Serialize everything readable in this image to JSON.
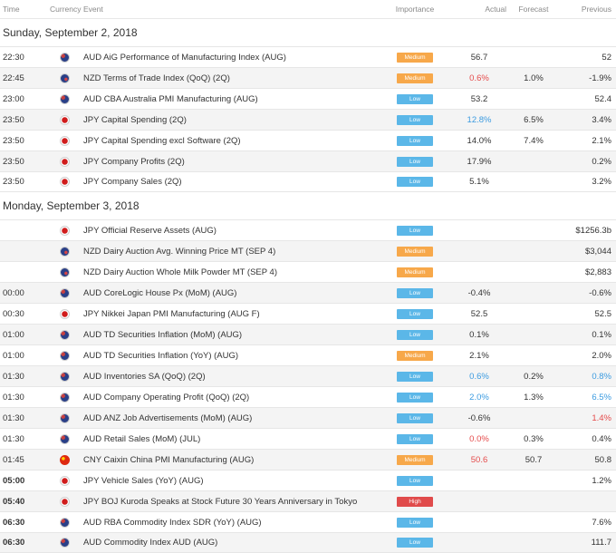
{
  "header": {
    "time": "Time",
    "currency": "Currency",
    "event": "Event",
    "importance": "Importance",
    "actual": "Actual",
    "forecast": "Forecast",
    "previous": "Previous"
  },
  "colors": {
    "low": "#5bb7e8",
    "medium": "#f7a84a",
    "high": "#e04b4b",
    "positive": "#3b9be0",
    "negative": "#e54b4b"
  },
  "days": [
    {
      "title": "Sunday, September 2, 2018",
      "events": [
        {
          "time": "22:30",
          "flag": "aud",
          "event": "AUD AiG Performance of Manufacturing Index (AUG)",
          "importance": "Medium",
          "imp": "medium",
          "actual": "56.7",
          "actual_tone": "",
          "forecast": "",
          "previous": "52",
          "previous_tone": ""
        },
        {
          "time": "22:45",
          "flag": "nzd",
          "event": "NZD Terms of Trade Index (QoQ) (2Q)",
          "importance": "Medium",
          "imp": "medium",
          "actual": "0.6%",
          "actual_tone": "neg",
          "forecast": "1.0%",
          "previous": "-1.9%",
          "previous_tone": ""
        },
        {
          "time": "23:00",
          "flag": "aud",
          "event": "AUD CBA Australia PMI Manufacturing (AUG)",
          "importance": "Low",
          "imp": "low",
          "actual": "53.2",
          "actual_tone": "",
          "forecast": "",
          "previous": "52.4",
          "previous_tone": ""
        },
        {
          "time": "23:50",
          "flag": "jpy",
          "event": "JPY Capital Spending (2Q)",
          "importance": "Low",
          "imp": "low",
          "actual": "12.8%",
          "actual_tone": "pos",
          "forecast": "6.5%",
          "previous": "3.4%",
          "previous_tone": ""
        },
        {
          "time": "23:50",
          "flag": "jpy",
          "event": "JPY Capital Spending excl Software (2Q)",
          "importance": "Low",
          "imp": "low",
          "actual": "14.0%",
          "actual_tone": "",
          "forecast": "7.4%",
          "previous": "2.1%",
          "previous_tone": ""
        },
        {
          "time": "23:50",
          "flag": "jpy",
          "event": "JPY Company Profits (2Q)",
          "importance": "Low",
          "imp": "low",
          "actual": "17.9%",
          "actual_tone": "",
          "forecast": "",
          "previous": "0.2%",
          "previous_tone": ""
        },
        {
          "time": "23:50",
          "flag": "jpy",
          "event": "JPY Company Sales (2Q)",
          "importance": "Low",
          "imp": "low",
          "actual": "5.1%",
          "actual_tone": "",
          "forecast": "",
          "previous": "3.2%",
          "previous_tone": ""
        }
      ]
    },
    {
      "title": "Monday, September 3, 2018",
      "events": [
        {
          "time": "",
          "flag": "jpy",
          "event": "JPY Official Reserve Assets (AUG)",
          "importance": "Low",
          "imp": "low",
          "actual": "",
          "actual_tone": "",
          "forecast": "",
          "previous": "$1256.3b",
          "previous_tone": ""
        },
        {
          "time": "",
          "flag": "nzd",
          "event": "NZD Dairy Auction Avg. Winning Price MT (SEP 4)",
          "importance": "Medium",
          "imp": "medium",
          "actual": "",
          "actual_tone": "",
          "forecast": "",
          "previous": "$3,044",
          "previous_tone": ""
        },
        {
          "time": "",
          "flag": "nzd",
          "event": "NZD Dairy Auction Whole Milk Powder MT (SEP 4)",
          "importance": "Medium",
          "imp": "medium",
          "actual": "",
          "actual_tone": "",
          "forecast": "",
          "previous": "$2,883",
          "previous_tone": ""
        },
        {
          "time": "00:00",
          "flag": "aud",
          "event": "AUD CoreLogic House Px (MoM) (AUG)",
          "importance": "Low",
          "imp": "low",
          "actual": "-0.4%",
          "actual_tone": "",
          "forecast": "",
          "previous": "-0.6%",
          "previous_tone": ""
        },
        {
          "time": "00:30",
          "flag": "jpy",
          "event": "JPY Nikkei Japan PMI Manufacturing (AUG F)",
          "importance": "Low",
          "imp": "low",
          "actual": "52.5",
          "actual_tone": "",
          "forecast": "",
          "previous": "52.5",
          "previous_tone": ""
        },
        {
          "time": "01:00",
          "flag": "aud",
          "event": "AUD TD Securities Inflation (MoM) (AUG)",
          "importance": "Low",
          "imp": "low",
          "actual": "0.1%",
          "actual_tone": "",
          "forecast": "",
          "previous": "0.1%",
          "previous_tone": ""
        },
        {
          "time": "01:00",
          "flag": "aud",
          "event": "AUD TD Securities Inflation (YoY) (AUG)",
          "importance": "Medium",
          "imp": "medium",
          "actual": "2.1%",
          "actual_tone": "",
          "forecast": "",
          "previous": "2.0%",
          "previous_tone": ""
        },
        {
          "time": "01:30",
          "flag": "aud",
          "event": "AUD Inventories SA (QoQ) (2Q)",
          "importance": "Low",
          "imp": "low",
          "actual": "0.6%",
          "actual_tone": "pos",
          "forecast": "0.2%",
          "previous": "0.8%",
          "previous_tone": "pos"
        },
        {
          "time": "01:30",
          "flag": "aud",
          "event": "AUD Company Operating Profit (QoQ) (2Q)",
          "importance": "Low",
          "imp": "low",
          "actual": "2.0%",
          "actual_tone": "pos",
          "forecast": "1.3%",
          "previous": "6.5%",
          "previous_tone": "pos"
        },
        {
          "time": "01:30",
          "flag": "aud",
          "event": "AUD ANZ Job Advertisements (MoM) (AUG)",
          "importance": "Low",
          "imp": "low",
          "actual": "-0.6%",
          "actual_tone": "",
          "forecast": "",
          "previous": "1.4%",
          "previous_tone": "neg"
        },
        {
          "time": "01:30",
          "flag": "aud",
          "event": "AUD Retail Sales (MoM) (JUL)",
          "importance": "Low",
          "imp": "low",
          "actual": "0.0%",
          "actual_tone": "neg",
          "forecast": "0.3%",
          "previous": "0.4%",
          "previous_tone": ""
        },
        {
          "time": "01:45",
          "flag": "cny",
          "event": "CNY Caixin China PMI Manufacturing (AUG)",
          "importance": "Medium",
          "imp": "medium",
          "actual": "50.6",
          "actual_tone": "neg",
          "forecast": "50.7",
          "previous": "50.8",
          "previous_tone": ""
        },
        {
          "time": "05:00",
          "flag": "jpy",
          "event": "JPY Vehicle Sales (YoY) (AUG)",
          "importance": "Low",
          "imp": "low",
          "actual": "",
          "actual_tone": "",
          "forecast": "",
          "previous": "1.2%",
          "previous_tone": "",
          "bold": true
        },
        {
          "time": "05:40",
          "flag": "jpy",
          "event": "JPY BOJ Kuroda Speaks at Stock Future 30 Years Anniversary in Tokyo",
          "importance": "High",
          "imp": "high",
          "actual": "",
          "actual_tone": "",
          "forecast": "",
          "previous": "",
          "previous_tone": "",
          "bold": true
        },
        {
          "time": "06:30",
          "flag": "aud",
          "event": "AUD RBA Commodity Index SDR (YoY) (AUG)",
          "importance": "Low",
          "imp": "low",
          "actual": "",
          "actual_tone": "",
          "forecast": "",
          "previous": "7.6%",
          "previous_tone": "",
          "bold": true
        },
        {
          "time": "06:30",
          "flag": "aud",
          "event": "AUD Commodity Index AUD (AUG)",
          "importance": "Low",
          "imp": "low",
          "actual": "",
          "actual_tone": "",
          "forecast": "",
          "previous": "111.7",
          "previous_tone": "",
          "bold": true
        }
      ]
    }
  ]
}
